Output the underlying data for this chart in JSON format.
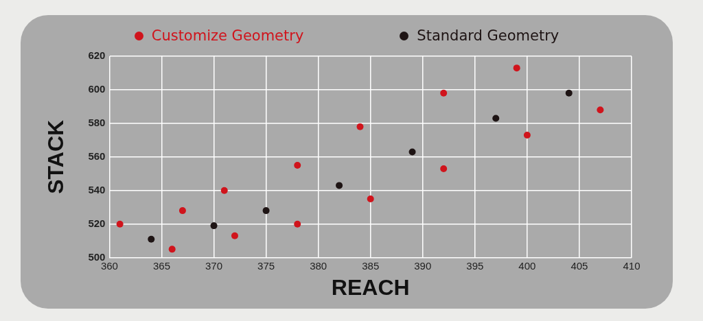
{
  "chart_data": {
    "type": "scatter",
    "xlabel": "REACH",
    "ylabel": "STACK",
    "series": [
      {
        "name": "Customize Geometry",
        "color": "#d0141c",
        "x": [
          361,
          366,
          367,
          371,
          372,
          378,
          378,
          384,
          385,
          392,
          392,
          399,
          400,
          407
        ],
        "values": [
          520,
          505,
          528,
          540,
          513,
          555,
          520,
          578,
          535,
          598,
          553,
          613,
          573,
          588
        ]
      },
      {
        "name": "Standard Geometry",
        "color": "#1e1414",
        "x": [
          364,
          370,
          375,
          382,
          389,
          397,
          404
        ],
        "values": [
          511,
          519,
          528,
          543,
          563,
          583,
          598
        ]
      }
    ],
    "xlim": [
      360,
      410
    ],
    "xticks": [
      360,
      365,
      370,
      375,
      380,
      385,
      390,
      395,
      400,
      405,
      410
    ],
    "ylim": [
      500,
      620
    ],
    "yticks": [
      500,
      520,
      540,
      560,
      580,
      600,
      620
    ],
    "grid": true,
    "legend": "top",
    "marker": "circle"
  }
}
